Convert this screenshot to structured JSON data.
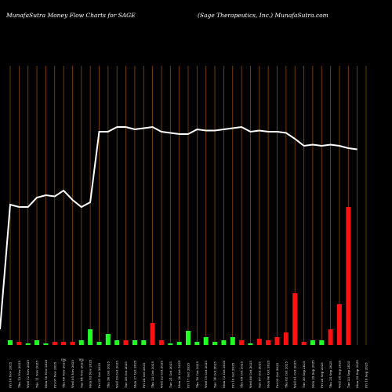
{
  "chart_data": {
    "type": "bar",
    "title_left": "MunafaSutra  Money Flow  Charts for SAGE",
    "title_right": "(Sage    Therapeutics,  Inc.) MunafaSutra.com",
    "categories": [
      "Fri 14 Nov",
      "Thu 13 Nov",
      "Wed 12 Nov",
      "Tue 11 Nov",
      "Mon 10 Nov",
      "Fri 07 Nov",
      "Thu 06 Nov",
      "Wed 05 Nov",
      "Tue 04 Nov",
      "Mon 03 Nov",
      "Fri 31 Oct",
      "Thu 30 Oct",
      "Wed 29 Oct",
      "Tue 28 Oct",
      "Mon 27 Oct",
      "Fri 24 Oct",
      "Thu 23 Oct",
      "Wed 22 Oct",
      "Tue 21 Oct",
      "Mon 20 Oct",
      "Fri 17 Oct",
      "Thu 16 Oct",
      "Wed 15 Oct",
      "Tue 14 Oct",
      "Mon 13 Oct",
      "Fri 10 Oct",
      "Thu 09 Oct",
      "Wed 08 Oct",
      "Tue 07 Oct",
      "Mon 06 Oct",
      "Fri 03 Oct",
      "Thu 02 Oct",
      "Wed 01 Oct",
      "Tue 30 Sep",
      "Mon 29 Sep",
      "Fri 26 Sep",
      "Thu 25 Sep",
      "Wed 24 Sep",
      "Tue 23 Sep",
      "Mon 22 Sep",
      "Fri 19 Sep"
    ],
    "tick_labels": [
      "Fri 14 Nov 2025",
      "Thu 13 Nov 2025",
      "Wed 12 Nov 2025",
      "Tue 11 Nov 2025",
      "Mon 10 Nov 2025",
      "Fri 07 Nov 2025",
      "Thu 06 Nov 2025",
      "Wed 05 Nov 2025",
      "Tue 04 Nov 2025",
      "Mon 03 Nov 2025",
      "Fri 31 Oct 2025",
      "Thu 30 Oct 2025",
      "Wed 29 Oct 2025",
      "Tue 28 Oct 2025",
      "Mon 27 Oct 2025",
      "Fri 24 Oct 2025",
      "Thu 23 Oct 2025",
      "Wed 22 Oct 2025",
      "Tue 21 Oct 2025",
      "Mon 20 Oct 2025",
      "Fri 17 Oct 2025",
      "Thu 16 Oct 2025",
      "Wed 15 Oct 2025",
      "Tue 14 Oct 2025",
      "Mon 13 Oct 2025",
      "Fri 10 Oct 2025",
      "Thu 09 Oct 2025",
      "Wed 08 Oct 2025",
      "Tue 07 Oct 2025",
      "Mon 06 Oct 2025",
      "Fri 03 Oct 2025",
      "Thu 02 Oct 2025",
      "Wed 01 Oct 2025",
      "Tue 30 Sep 2025",
      "Mon 29 Sep 2025",
      "Fri 26 Sep 2025",
      "Thu 25 Sep 2025",
      "Wed 24 Sep 2025",
      "Tue 23 Sep 2025",
      "Mon 22 Sep 2025",
      "Fri 19 Sep 2025"
    ],
    "pct_labels": [
      "",
      "",
      "",
      "",
      "",
      "",
      "0%",
      "",
      "0%",
      "",
      "",
      "",
      "",
      "",
      "",
      "",
      "",
      "",
      "",
      "",
      "",
      "",
      "",
      "",
      "",
      "",
      "",
      "",
      "",
      "",
      "",
      "",
      "",
      "",
      "",
      "",
      "",
      "",
      "",
      "",
      ""
    ],
    "price_series": {
      "ylim": [
        0,
        100
      ],
      "values": [
        5,
        58,
        57,
        57,
        61,
        62,
        61.5,
        64,
        60,
        57,
        59,
        89,
        89,
        91,
        91,
        90,
        90.5,
        91,
        89,
        88.5,
        88,
        88,
        90,
        89.5,
        89.5,
        90,
        90.5,
        91,
        89,
        89.5,
        89,
        89,
        88.5,
        86,
        83,
        83.5,
        83,
        83.5,
        83,
        82,
        81.5
      ]
    },
    "volume_series": {
      "ylim": [
        0,
        100
      ],
      "values": [
        3,
        2,
        1,
        3,
        1,
        2,
        2,
        2,
        3,
        10,
        2,
        7,
        3,
        3,
        3,
        3,
        14,
        3,
        1,
        2,
        9,
        2,
        5,
        2,
        3,
        5,
        3,
        1,
        4,
        3,
        5,
        8,
        33,
        2,
        3,
        3,
        10,
        26,
        88,
        0,
        0
      ],
      "directions": [
        "green",
        "red",
        "green",
        "green",
        "green",
        "red",
        "red",
        "red",
        "green",
        "green",
        "green",
        "green",
        "green",
        "red",
        "green",
        "green",
        "red",
        "red",
        "green",
        "green",
        "green",
        "green",
        "green",
        "green",
        "green",
        "green",
        "red",
        "green",
        "red",
        "red",
        "red",
        "red",
        "red",
        "red",
        "green",
        "green",
        "red",
        "red",
        "red",
        "red",
        "red"
      ]
    },
    "colors": {
      "background": "#000000",
      "grid": "#8b4a00",
      "price_line": "#ffffff",
      "up": "#22ff22",
      "down": "#ff1111"
    }
  }
}
